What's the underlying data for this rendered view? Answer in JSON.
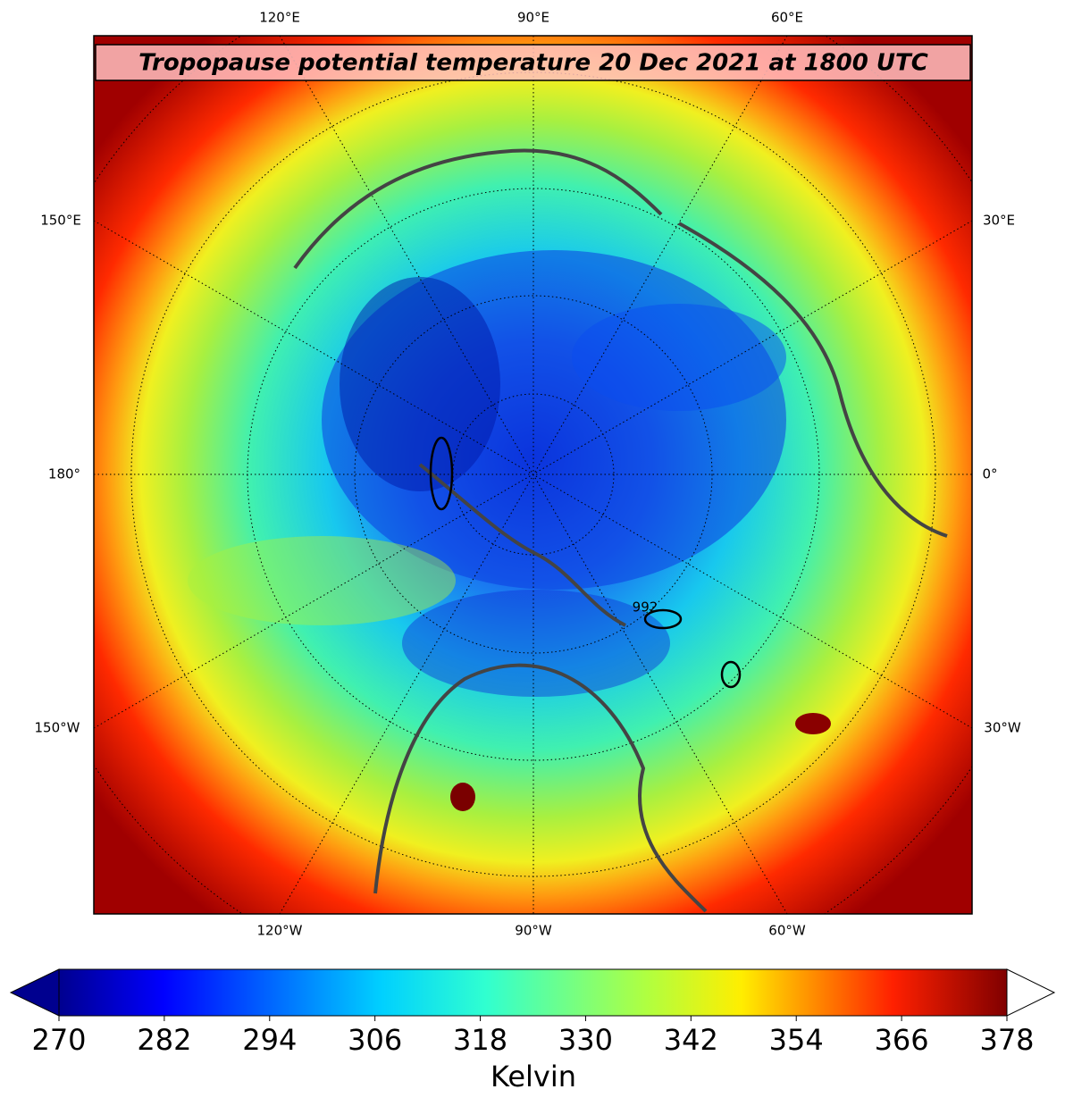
{
  "map": {
    "title": "Tropopause potential temperature 20 Dec 2021 at 1800 UTC",
    "longitude_labels": {
      "top": [
        "120°E",
        "90°E",
        "60°E"
      ],
      "left": [
        "150°E",
        "180°",
        "150°W"
      ],
      "right": [
        "30°E",
        "0°",
        "30°W"
      ],
      "bottom": [
        "120°W",
        "90°W",
        "60°W"
      ]
    },
    "contour_labels": [
      "992"
    ]
  },
  "colorbar": {
    "lim": [
      270,
      378
    ],
    "ticks": [
      270,
      282,
      294,
      306,
      318,
      330,
      342,
      354,
      366,
      378
    ],
    "label": "Kelvin"
  }
}
